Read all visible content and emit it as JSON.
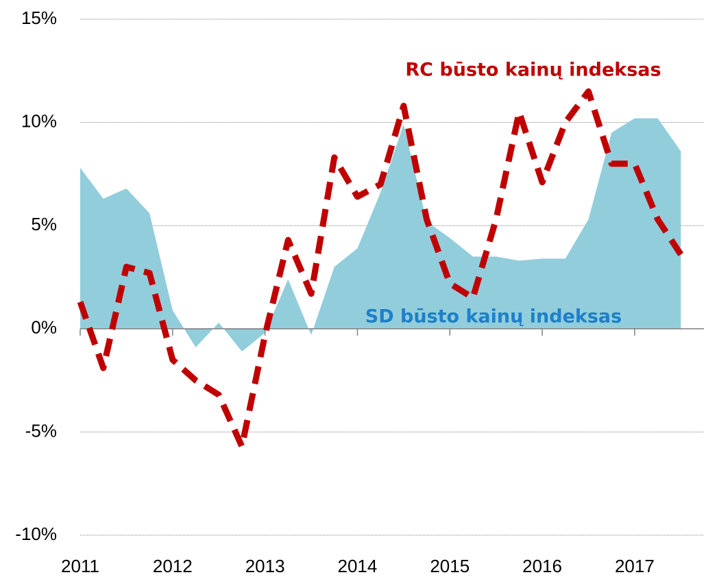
{
  "chart_data": {
    "type": "area_line",
    "x": [
      2011,
      2011.25,
      2011.5,
      2011.75,
      2012,
      2012.25,
      2012.5,
      2012.75,
      2013,
      2013.25,
      2013.5,
      2013.75,
      2014,
      2014.25,
      2014.5,
      2014.75,
      2015,
      2015.25,
      2015.5,
      2015.75,
      2016,
      2016.25,
      2016.5,
      2016.75,
      2017,
      2017.25,
      2017.5
    ],
    "series": [
      {
        "name": "SD būsto kainų indeksas",
        "color": "#92cddc",
        "label_color": "#1f80c8",
        "kind": "area",
        "values": [
          7.8,
          6.3,
          6.8,
          5.6,
          0.9,
          -0.9,
          0.3,
          -1.1,
          -0.2,
          2.4,
          -0.3,
          3.0,
          3.9,
          6.6,
          9.9,
          5.2,
          4.4,
          3.5,
          3.5,
          3.3,
          3.4,
          3.4,
          5.3,
          9.5,
          10.2,
          10.2,
          8.6
        ]
      },
      {
        "name": "RC būsto kainų indeksas",
        "color": "#c00000",
        "label_color": "#c00000",
        "kind": "line",
        "values": [
          1.3,
          -1.9,
          3.0,
          2.7,
          -1.5,
          -2.5,
          -3.2,
          -5.7,
          -0.3,
          4.3,
          1.7,
          8.3,
          6.4,
          7.0,
          10.8,
          5.3,
          2.2,
          1.5,
          5.3,
          10.5,
          7.1,
          10.0,
          11.5,
          8.0,
          8.0,
          5.3,
          3.6
        ]
      }
    ],
    "xlim": [
      2011,
      2017.75
    ],
    "xticks": [
      2011,
      2012,
      2013,
      2014,
      2015,
      2016,
      2017
    ],
    "ylim": [
      -10,
      15
    ],
    "yticks": [
      {
        "value": -10,
        "label": "-10%"
      },
      {
        "value": -5,
        "label": "-5%"
      },
      {
        "value": 0,
        "label": "0%"
      },
      {
        "value": 5,
        "label": "5%"
      },
      {
        "value": 10,
        "label": "10%"
      },
      {
        "value": 15,
        "label": "15%"
      }
    ],
    "grid": true
  }
}
